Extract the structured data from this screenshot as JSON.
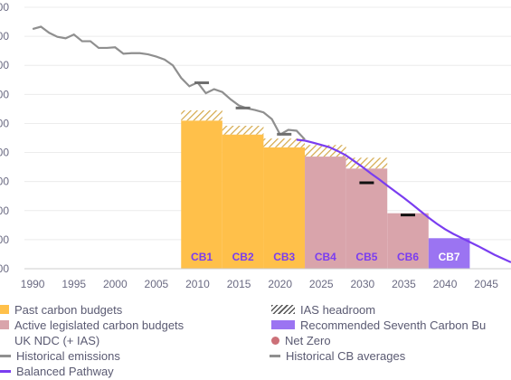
{
  "colors": {
    "past": "#ffc04a",
    "active": "#d9a4ab",
    "recommended": "#9b74f2",
    "historical": "#8f8f8f",
    "pathway": "#7a3df0",
    "netzero": "#cc7078",
    "hatch": "#d4a84a",
    "axis": "#cccccc",
    "grid": "#ececec",
    "label": "#7a3df0",
    "tick": "#6a6a82"
  },
  "chart_data": {
    "type": "bar",
    "xlim": [
      1989,
      2048
    ],
    "ylim": [
      0,
      900
    ],
    "y_ticks": [
      0,
      100,
      200,
      300,
      400,
      500,
      600,
      700,
      800,
      900
    ],
    "y_tick_labels": [
      "00",
      "00",
      "00",
      "00",
      "00",
      "00",
      "00",
      "00",
      "00",
      "00"
    ],
    "x_ticks": [
      1990,
      1995,
      2000,
      2005,
      2010,
      2015,
      2020,
      2025,
      2030,
      2035,
      2040,
      2045
    ],
    "x_tick_labels": [
      "1990",
      "1995",
      "2000",
      "2005",
      "2010",
      "2015",
      "2020",
      "2025",
      "2030",
      "2035",
      "2040",
      "2045"
    ],
    "budgets": [
      {
        "label": "CB1",
        "start": 2008,
        "end": 2013,
        "value": 510,
        "ias": 35,
        "kind": "past"
      },
      {
        "label": "CB2",
        "start": 2013,
        "end": 2018,
        "value": 462,
        "ias": 30,
        "kind": "past"
      },
      {
        "label": "CB3",
        "start": 2018,
        "end": 2023,
        "value": 418,
        "ias": 30,
        "kind": "past"
      },
      {
        "label": "CB4",
        "start": 2023,
        "end": 2028,
        "value": 386,
        "ias": 40,
        "kind": "active"
      },
      {
        "label": "CB5",
        "start": 2028,
        "end": 2033,
        "value": 345,
        "ias": 37,
        "kind": "active"
      },
      {
        "label": "CB6",
        "start": 2033,
        "end": 2038,
        "value": 191,
        "ias": 0,
        "kind": "active"
      },
      {
        "label": "CB7",
        "start": 2038,
        "end": 2043,
        "value": 105,
        "ias": 0,
        "kind": "recommended"
      }
    ],
    "historical_emissions": {
      "x": [
        1990,
        1991,
        1992,
        1993,
        1994,
        1995,
        1996,
        1997,
        1998,
        1999,
        2000,
        2001,
        2002,
        2003,
        2004,
        2005,
        2006,
        2007,
        2008,
        2009,
        2010,
        2011,
        2012,
        2013,
        2014,
        2015,
        2016,
        2017,
        2018,
        2019,
        2020,
        2021,
        2022,
        2023
      ],
      "y": [
        825,
        833,
        812,
        798,
        793,
        806,
        783,
        783,
        760,
        760,
        762,
        740,
        742,
        742,
        738,
        730,
        720,
        700,
        657,
        628,
        641,
        604,
        618,
        608,
        583,
        562,
        552,
        546,
        538,
        515,
        462,
        478,
        475,
        445
      ]
    },
    "historical_cb_averages": [
      {
        "x": 2010.5,
        "y": 640
      },
      {
        "x": 2015.5,
        "y": 553
      },
      {
        "x": 2020.5,
        "y": 463
      },
      {
        "x": 2030.5,
        "y": 296
      },
      {
        "x": 2035.5,
        "y": 185
      }
    ],
    "balanced_pathway": {
      "x": [
        2022,
        2023,
        2024,
        2025,
        2026,
        2027,
        2028,
        2029,
        2030,
        2031,
        2032,
        2033,
        2034,
        2035,
        2036,
        2037,
        2038,
        2039,
        2040,
        2041,
        2042,
        2043,
        2044,
        2045,
        2046,
        2047,
        2048
      ],
      "y": [
        444,
        441,
        434,
        426,
        418,
        405,
        390,
        370,
        350,
        328,
        308,
        286,
        265,
        244,
        222,
        199,
        176,
        155,
        136,
        120,
        106,
        92,
        78,
        63,
        48,
        35,
        22
      ]
    },
    "legend": [
      {
        "label": "Past carbon budgets",
        "symbol": "box",
        "color": "#ffc04a"
      },
      {
        "label": "IAS headroom",
        "symbol": "hatch",
        "color": "#555555"
      },
      {
        "label": "Active legislated carbon budgets",
        "symbol": "box",
        "color": "#d9a4ab"
      },
      {
        "label": "Recommended Seventh Carbon Bu",
        "symbol": "wide",
        "color": "#9b74f2"
      },
      {
        "label": "UK NDC (+ IAS)",
        "symbol": "none",
        "color": "#ffffff"
      },
      {
        "label": "Net Zero",
        "symbol": "dot",
        "color": "#cc7078"
      },
      {
        "label": "Historical emissions",
        "symbol": "line",
        "color": "#8f8f8f"
      },
      {
        "label": "Historical CB averages",
        "symbol": "dash",
        "color": "#8f8f8f"
      },
      {
        "label": "Balanced Pathway",
        "symbol": "line",
        "color": "#7a3df0"
      }
    ]
  }
}
